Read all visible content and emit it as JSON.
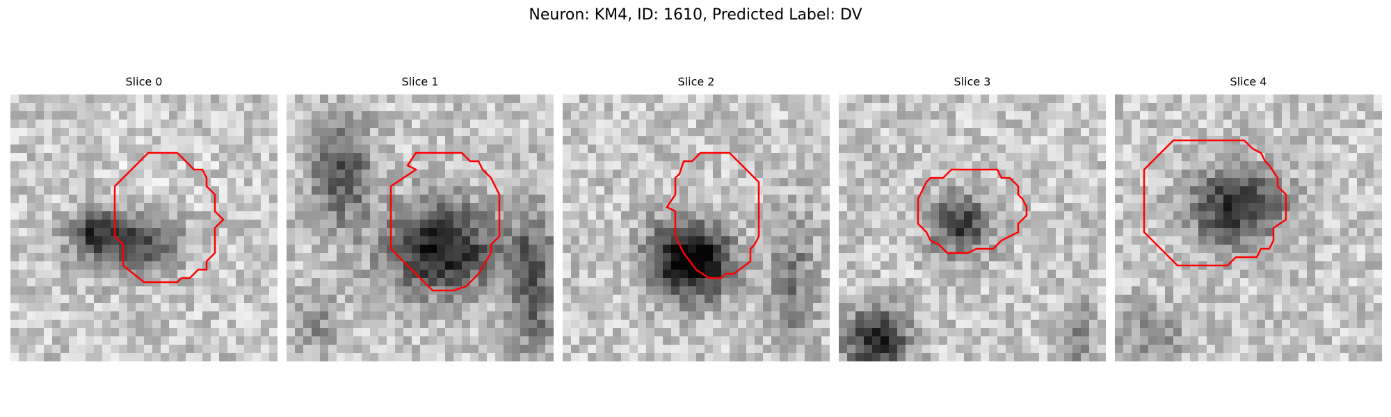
{
  "figure": {
    "title": "Neuron: KM4, ID: 1610, Predicted Label: DV"
  },
  "outline_color": "#ff0000",
  "colormap": "grayscale",
  "panels": [
    {
      "title": "Slice 0"
    },
    {
      "title": "Slice 1"
    },
    {
      "title": "Slice 2"
    },
    {
      "title": "Slice 3"
    },
    {
      "title": "Slice 4"
    }
  ]
}
